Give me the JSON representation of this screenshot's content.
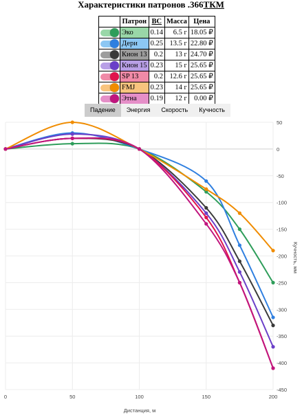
{
  "title": {
    "main": "Характеристики патронов .366",
    "underlined": "ТКМ"
  },
  "table": {
    "headers": {
      "switch": "",
      "name": "Патрон",
      "bc": "ВС",
      "mass": "Масса",
      "price": "Цена"
    },
    "rows": [
      {
        "name": "Эко",
        "bc": "0.14",
        "mass": "6.5 г",
        "price": "18.05 ₽",
        "color": "#2e9d5a",
        "bg": "#99d7a8"
      },
      {
        "name": "Дери",
        "bc": "0.25",
        "mass": "13.5 г",
        "price": "22.80 ₽",
        "color": "#2f7fe0",
        "bg": "#8cc7f3"
      },
      {
        "name": "Кион 13",
        "bc": "0.2",
        "mass": "13 г",
        "price": "24.70 ₽",
        "color": "#3a3a3a",
        "bg": "#9d9d9d"
      },
      {
        "name": "Кион 15",
        "bc": "0.23",
        "mass": "15 г",
        "price": "25.65 ₽",
        "color": "#6a3fc8",
        "bg": "#b89fe6"
      },
      {
        "name": "SP 13",
        "bc": "0.2",
        "mass": "12.6 г",
        "price": "25.65 ₽",
        "color": "#e0154c",
        "bg": "#f08aa7"
      },
      {
        "name": "FMJ",
        "bc": "0.23",
        "mass": "14 г",
        "price": "25.65 ₽",
        "color": "#f08c00",
        "bg": "#f8c47e"
      },
      {
        "name": "Этна",
        "bc": "0.19",
        "mass": "12 г",
        "price": "0.00 ₽",
        "color": "#c0157e",
        "bg": "#e58fc8"
      }
    ]
  },
  "tabs": [
    "Падение",
    "Энергия",
    "Скорость",
    "Кучность"
  ],
  "active_tab": 0,
  "chart_data": {
    "type": "line",
    "title": "",
    "xlabel": "Дистанция, м",
    "ylabel": "Кучность, мм",
    "x": [
      0,
      50,
      100,
      150,
      175,
      200
    ],
    "xticks": [
      0,
      50,
      100,
      150,
      200
    ],
    "yticks": [
      50,
      0,
      -50,
      -100,
      -150,
      -200,
      -250,
      -300,
      -350,
      -400,
      -450
    ],
    "xlim": [
      0,
      200
    ],
    "ylim": [
      -450,
      50
    ],
    "grid": true,
    "series": [
      {
        "name": "Эко",
        "color": "#2e9d5a",
        "values": [
          0,
          10,
          0,
          -80,
          -150,
          -250
        ]
      },
      {
        "name": "Дери",
        "color": "#2f7fe0",
        "values": [
          0,
          30,
          0,
          -60,
          -180,
          -315
        ]
      },
      {
        "name": "Кион 13",
        "color": "#3a3a3a",
        "values": [
          0,
          20,
          0,
          -110,
          -210,
          -330
        ]
      },
      {
        "name": "Кион 15",
        "color": "#6a3fc8",
        "values": [
          0,
          28,
          0,
          -120,
          -230,
          -370
        ]
      },
      {
        "name": "SP 13",
        "color": "#e0154c",
        "values": [
          0,
          20,
          0,
          -128,
          -250,
          -410
        ]
      },
      {
        "name": "FMJ",
        "color": "#f08c00",
        "values": [
          0,
          50,
          0,
          -75,
          -120,
          -190
        ]
      },
      {
        "name": "Этна",
        "color": "#c0157e",
        "values": [
          0,
          20,
          0,
          -140,
          -250,
          -410
        ]
      }
    ]
  }
}
